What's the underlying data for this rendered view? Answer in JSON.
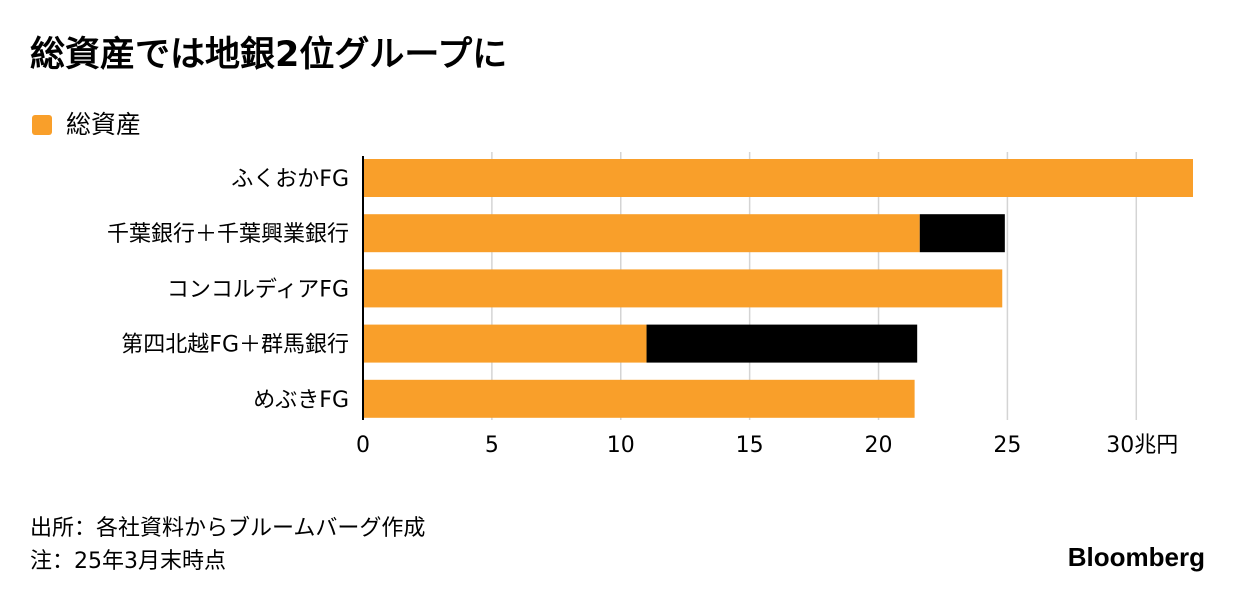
{
  "header": {
    "title": "総資産では地銀2位グループに"
  },
  "legend": {
    "label": "総資産",
    "color": "#f99f2a"
  },
  "chart_data": {
    "type": "bar",
    "orientation": "horizontal",
    "stacked": true,
    "categories": [
      "ふくおかFG",
      "千葉銀行＋千葉興業銀行",
      "コンコルディアFG",
      "第四北越FG＋群馬銀行",
      "めぶきFG"
    ],
    "series": [
      {
        "name": "総資産",
        "color": "#f99f2a",
        "values": [
          32.2,
          21.6,
          24.8,
          11.0,
          21.4
        ]
      },
      {
        "color": "#000000",
        "values": [
          0,
          3.3,
          0,
          10.5,
          0
        ]
      }
    ],
    "xlim": [
      0,
      32.2
    ],
    "xticks": [
      0,
      5,
      10,
      15,
      20,
      25,
      30
    ],
    "xtick_labels": [
      "0",
      "5",
      "10",
      "15",
      "20",
      "25",
      "30兆円"
    ],
    "grid": true,
    "legend_position": "top-left"
  },
  "footer": {
    "source": "出所：各社資料からブルームバーグ作成",
    "note": "注：25年3月末時点",
    "brand": "Bloomberg"
  }
}
